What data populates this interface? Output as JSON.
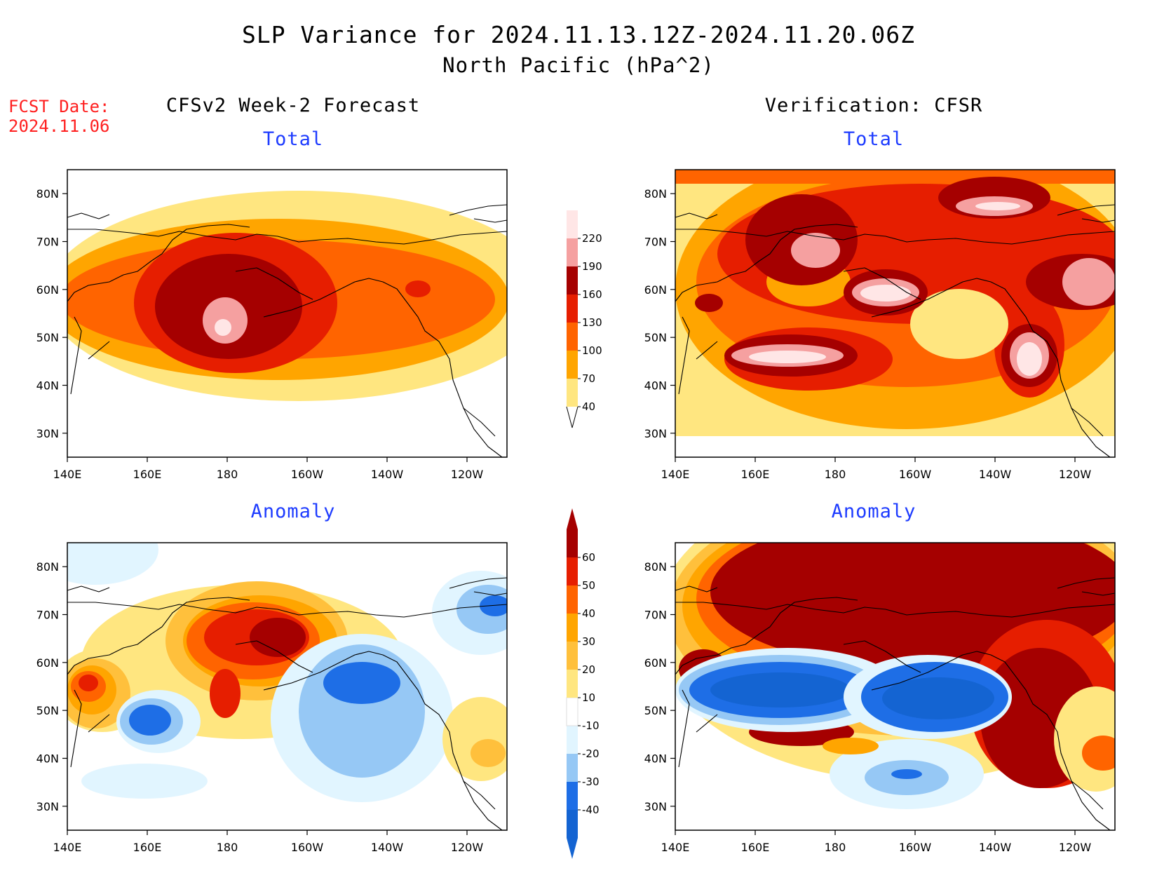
{
  "header": {
    "title": "SLP Variance for 2024.11.13.12Z-2024.11.20.06Z",
    "subtitle": "North Pacific (hPa^2)",
    "fcst_label": "FCST Date:",
    "fcst_date": "2024.11.06"
  },
  "columns": {
    "left": "CFSv2 Week-2 Forecast",
    "right": "Verification: CFSR"
  },
  "panels": [
    {
      "id": "fcst-total",
      "label": "Total"
    },
    {
      "id": "verif-total",
      "label": "Total"
    },
    {
      "id": "fcst-anomaly",
      "label": "Anomaly"
    },
    {
      "id": "verif-anomaly",
      "label": "Anomaly"
    }
  ],
  "axes": {
    "lon_labels": [
      "140E",
      "160E",
      "180",
      "160W",
      "140W",
      "120W"
    ],
    "lat_labels": [
      "80N",
      "70N",
      "60N",
      "50N",
      "40N",
      "30N"
    ],
    "lon_range": [
      140,
      250
    ],
    "lat_range": [
      25,
      85
    ]
  },
  "colorbar_total": {
    "levels": [
      "40",
      "70",
      "100",
      "130",
      "160",
      "190",
      "220"
    ],
    "colors": [
      "#ffe680",
      "#ffa500",
      "#ff6400",
      "#e61e00",
      "#a50000",
      "#f5a0a0",
      "#ffe6e6"
    ]
  },
  "colorbar_anomaly": {
    "levels": [
      "-40",
      "-30",
      "-20",
      "-10",
      "10",
      "20",
      "30",
      "40",
      "50",
      "60"
    ],
    "colors": [
      "#1464d2",
      "#1e6ee6",
      "#96c8f5",
      "#e1f5ff",
      "#ffffff",
      "#ffe680",
      "#ffc03c",
      "#ffa500",
      "#ff6400",
      "#e61e00",
      "#a50000"
    ]
  }
}
